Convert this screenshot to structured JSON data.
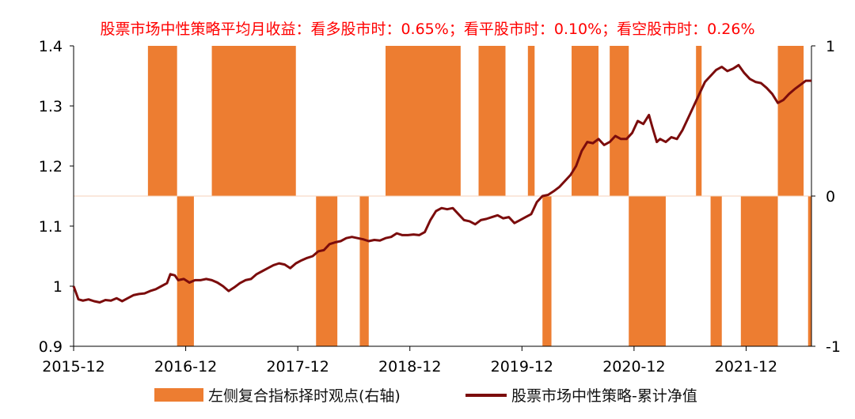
{
  "chart_data": {
    "type": "bar+line",
    "title": "股票市场中性策略平均月收益：看多股市时：0.65%；看平股市时：0.10%；看空股市时：0.26%",
    "left_axis": {
      "min": 0.9,
      "max": 1.4,
      "ticks": [
        "0.9",
        "1",
        "1.1",
        "1.2",
        "1.3",
        "1.4"
      ]
    },
    "right_axis": {
      "min": -1,
      "max": 1,
      "ticks": [
        "-1",
        "0",
        "1"
      ]
    },
    "x_axis": {
      "min": 2015.917,
      "max": 2022.5,
      "ticks": [
        {
          "t": 2015.917,
          "label": "2015-12"
        },
        {
          "t": 2016.917,
          "label": "2016-12"
        },
        {
          "t": 2017.917,
          "label": "2017-12"
        },
        {
          "t": 2018.917,
          "label": "2018-12"
        },
        {
          "t": 2019.917,
          "label": "2019-12"
        },
        {
          "t": 2020.917,
          "label": "2020-12"
        },
        {
          "t": 2021.917,
          "label": "2021-12"
        }
      ]
    },
    "series": [
      {
        "name": "左侧复合指标择时观点(右轴)",
        "kind": "bar",
        "axis": "right",
        "color": "#ed7d31",
        "periods": [
          {
            "start": 2016.58,
            "end": 2016.84,
            "value": 1
          },
          {
            "start": 2016.84,
            "end": 2016.99,
            "value": -1
          },
          {
            "start": 2016.99,
            "end": 2017.15,
            "value": 0
          },
          {
            "start": 2017.15,
            "end": 2017.9,
            "value": 1
          },
          {
            "start": 2018.08,
            "end": 2018.27,
            "value": -1
          },
          {
            "start": 2018.47,
            "end": 2018.55,
            "value": -1
          },
          {
            "start": 2018.7,
            "end": 2019.37,
            "value": 1
          },
          {
            "start": 2019.53,
            "end": 2019.77,
            "value": 1
          },
          {
            "start": 2019.97,
            "end": 2020.03,
            "value": 1
          },
          {
            "start": 2020.1,
            "end": 2020.18,
            "value": -1
          },
          {
            "start": 2020.36,
            "end": 2020.6,
            "value": 1
          },
          {
            "start": 2020.7,
            "end": 2020.87,
            "value": 1
          },
          {
            "start": 2020.87,
            "end": 2021.2,
            "value": -1
          },
          {
            "start": 2021.47,
            "end": 2021.52,
            "value": 1
          },
          {
            "start": 2021.6,
            "end": 2021.7,
            "value": -1
          },
          {
            "start": 2021.87,
            "end": 2022.2,
            "value": -1
          },
          {
            "start": 2022.2,
            "end": 2022.43,
            "value": 1
          },
          {
            "start": 2022.47,
            "end": 2022.5,
            "value": -1
          }
        ]
      },
      {
        "name": "股票市场中性策略-累计净值",
        "kind": "line",
        "axis": "left",
        "color": "#7b0c0c",
        "points": [
          [
            2015.917,
            1.0
          ],
          [
            2015.96,
            0.978
          ],
          [
            2016.0,
            0.976
          ],
          [
            2016.05,
            0.978
          ],
          [
            2016.1,
            0.975
          ],
          [
            2016.15,
            0.973
          ],
          [
            2016.2,
            0.977
          ],
          [
            2016.25,
            0.976
          ],
          [
            2016.3,
            0.98
          ],
          [
            2016.35,
            0.975
          ],
          [
            2016.4,
            0.98
          ],
          [
            2016.45,
            0.985
          ],
          [
            2016.5,
            0.987
          ],
          [
            2016.55,
            0.988
          ],
          [
            2016.6,
            0.992
          ],
          [
            2016.65,
            0.995
          ],
          [
            2016.7,
            1.0
          ],
          [
            2016.75,
            1.005
          ],
          [
            2016.78,
            1.02
          ],
          [
            2016.82,
            1.018
          ],
          [
            2016.85,
            1.01
          ],
          [
            2016.9,
            1.012
          ],
          [
            2016.95,
            1.006
          ],
          [
            2017.0,
            1.01
          ],
          [
            2017.05,
            1.01
          ],
          [
            2017.1,
            1.012
          ],
          [
            2017.15,
            1.01
          ],
          [
            2017.2,
            1.006
          ],
          [
            2017.25,
            1.0
          ],
          [
            2017.3,
            0.992
          ],
          [
            2017.35,
            0.998
          ],
          [
            2017.4,
            1.005
          ],
          [
            2017.45,
            1.01
          ],
          [
            2017.5,
            1.012
          ],
          [
            2017.55,
            1.02
          ],
          [
            2017.6,
            1.025
          ],
          [
            2017.65,
            1.03
          ],
          [
            2017.7,
            1.035
          ],
          [
            2017.75,
            1.038
          ],
          [
            2017.8,
            1.036
          ],
          [
            2017.85,
            1.03
          ],
          [
            2017.9,
            1.038
          ],
          [
            2017.95,
            1.043
          ],
          [
            2018.0,
            1.047
          ],
          [
            2018.05,
            1.05
          ],
          [
            2018.1,
            1.058
          ],
          [
            2018.15,
            1.06
          ],
          [
            2018.2,
            1.07
          ],
          [
            2018.25,
            1.073
          ],
          [
            2018.3,
            1.075
          ],
          [
            2018.35,
            1.08
          ],
          [
            2018.4,
            1.082
          ],
          [
            2018.45,
            1.08
          ],
          [
            2018.5,
            1.078
          ],
          [
            2018.55,
            1.075
          ],
          [
            2018.6,
            1.077
          ],
          [
            2018.65,
            1.076
          ],
          [
            2018.7,
            1.08
          ],
          [
            2018.75,
            1.082
          ],
          [
            2018.8,
            1.088
          ],
          [
            2018.85,
            1.085
          ],
          [
            2018.9,
            1.085
          ],
          [
            2018.95,
            1.086
          ],
          [
            2019.0,
            1.085
          ],
          [
            2019.05,
            1.09
          ],
          [
            2019.1,
            1.11
          ],
          [
            2019.15,
            1.125
          ],
          [
            2019.2,
            1.13
          ],
          [
            2019.25,
            1.128
          ],
          [
            2019.3,
            1.13
          ],
          [
            2019.35,
            1.12
          ],
          [
            2019.4,
            1.11
          ],
          [
            2019.45,
            1.108
          ],
          [
            2019.5,
            1.103
          ],
          [
            2019.55,
            1.11
          ],
          [
            2019.6,
            1.112
          ],
          [
            2019.65,
            1.115
          ],
          [
            2019.7,
            1.118
          ],
          [
            2019.75,
            1.113
          ],
          [
            2019.8,
            1.115
          ],
          [
            2019.85,
            1.105
          ],
          [
            2019.9,
            1.11
          ],
          [
            2019.95,
            1.115
          ],
          [
            2020.0,
            1.12
          ],
          [
            2020.05,
            1.14
          ],
          [
            2020.1,
            1.15
          ],
          [
            2020.15,
            1.152
          ],
          [
            2020.2,
            1.158
          ],
          [
            2020.25,
            1.165
          ],
          [
            2020.3,
            1.175
          ],
          [
            2020.35,
            1.185
          ],
          [
            2020.4,
            1.2
          ],
          [
            2020.45,
            1.225
          ],
          [
            2020.5,
            1.24
          ],
          [
            2020.55,
            1.238
          ],
          [
            2020.6,
            1.245
          ],
          [
            2020.65,
            1.235
          ],
          [
            2020.7,
            1.24
          ],
          [
            2020.75,
            1.25
          ],
          [
            2020.8,
            1.245
          ],
          [
            2020.85,
            1.245
          ],
          [
            2020.9,
            1.255
          ],
          [
            2020.95,
            1.275
          ],
          [
            2021.0,
            1.27
          ],
          [
            2021.05,
            1.285
          ],
          [
            2021.08,
            1.265
          ],
          [
            2021.12,
            1.24
          ],
          [
            2021.15,
            1.245
          ],
          [
            2021.2,
            1.24
          ],
          [
            2021.25,
            1.248
          ],
          [
            2021.3,
            1.245
          ],
          [
            2021.35,
            1.26
          ],
          [
            2021.4,
            1.28
          ],
          [
            2021.45,
            1.3
          ],
          [
            2021.5,
            1.32
          ],
          [
            2021.55,
            1.34
          ],
          [
            2021.6,
            1.35
          ],
          [
            2021.65,
            1.36
          ],
          [
            2021.7,
            1.365
          ],
          [
            2021.75,
            1.358
          ],
          [
            2021.8,
            1.362
          ],
          [
            2021.85,
            1.368
          ],
          [
            2021.9,
            1.355
          ],
          [
            2021.95,
            1.345
          ],
          [
            2022.0,
            1.34
          ],
          [
            2022.05,
            1.338
          ],
          [
            2022.1,
            1.33
          ],
          [
            2022.15,
            1.32
          ],
          [
            2022.2,
            1.305
          ],
          [
            2022.25,
            1.31
          ],
          [
            2022.3,
            1.32
          ],
          [
            2022.35,
            1.328
          ],
          [
            2022.4,
            1.335
          ],
          [
            2022.45,
            1.342
          ],
          [
            2022.5,
            1.342
          ]
        ]
      }
    ],
    "legend": {
      "position": "bottom"
    }
  }
}
